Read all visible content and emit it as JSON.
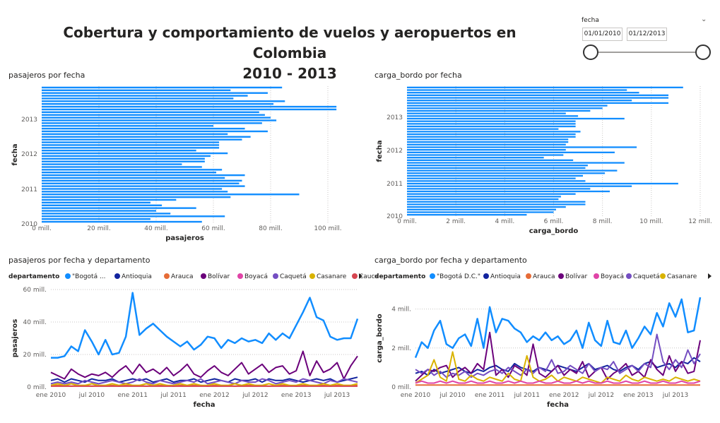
{
  "header": {
    "title_line1": "Cobertura y comportamiento de vuelos y aeropuertos en Colombia",
    "title_line2": "2010 - 2013"
  },
  "slicer": {
    "label": "fecha",
    "start": "01/01/2010",
    "end": "01/12/2013",
    "range_fraction": [
      0,
      1
    ]
  },
  "colors": {
    "bar": "#118DFF",
    "series": [
      "#118DFF",
      "#12239E",
      "#E66C37",
      "#6B007B",
      "#E044A7",
      "#744EC2",
      "#D9B300",
      "#D64550",
      "#197278",
      "#1AAB40"
    ]
  },
  "chart_data": [
    {
      "type": "bar",
      "orientation": "horizontal",
      "title": "pasajeros por fecha",
      "xlabel": "pasajeros",
      "ylabel": "fecha",
      "xlim": [
        0,
        100000000
      ],
      "x_ticks": [
        "0 mill.",
        "20 mill.",
        "40 mill.",
        "60 mill.",
        "80 mill.",
        "100 mill."
      ],
      "y_ticks": [
        "2013",
        "2012",
        "2011",
        "2010"
      ],
      "categories_order": "2013-12 top to 2010-01 bottom",
      "values_mill": [
        84,
        66,
        79,
        72,
        67,
        85,
        81,
        103,
        103,
        76,
        78,
        80,
        82,
        77,
        60,
        71,
        79,
        65,
        73,
        70,
        62,
        62,
        62,
        54,
        65,
        59,
        57,
        57,
        49,
        56,
        63,
        61,
        71,
        64,
        70,
        69,
        71,
        63,
        65,
        90,
        66,
        47,
        38,
        42,
        54,
        40,
        45,
        64,
        38,
        56
      ]
    },
    {
      "type": "bar",
      "orientation": "horizontal",
      "title": "carga_bordo por fecha",
      "xlabel": "carga_bordo",
      "ylabel": "fecha",
      "xlim": [
        0,
        12000000
      ],
      "x_ticks": [
        "0 mill.",
        "2 mill.",
        "4 mill.",
        "6 mill.",
        "8 mill.",
        "10 mill.",
        "12 mill."
      ],
      "y_ticks": [
        "2013",
        "2012",
        "2011",
        "2010"
      ],
      "categories_order": "2013-12 top to 2010-01 bottom",
      "values_mill": [
        11.3,
        9.0,
        9.5,
        10.7,
        10.7,
        9.2,
        10.7,
        8.2,
        8.0,
        7.5,
        6.5,
        7.0,
        8.9,
        6.9,
        6.9,
        6.9,
        6.2,
        7.1,
        6.9,
        6.9,
        6.6,
        6.6,
        6.5,
        9.4,
        6.5,
        8.5,
        6.4,
        5.6,
        6.8,
        8.9,
        7.4,
        7.3,
        8.6,
        8.1,
        7.2,
        6.9,
        7.3,
        11.1,
        9.2,
        7.5,
        8.3,
        6.9,
        6.3,
        6.2,
        7.3,
        7.3,
        6.5,
        6.1,
        6.0,
        4.9
      ]
    },
    {
      "type": "line",
      "title": "pasajeros por fecha y departamento",
      "xlabel": "fecha",
      "ylabel": "pasajeros",
      "ylim": [
        0,
        60000000
      ],
      "y_ticks": [
        "0 mill.",
        "20 mill.",
        "40 mill.",
        "60 mill."
      ],
      "x_ticks": [
        "ene 2010",
        "jul 2010",
        "ene 2011",
        "jul 2011",
        "ene 2012",
        "jul 2012",
        "ene 2013",
        "jul 2013"
      ],
      "legend_title": "departamento",
      "legend": [
        "\"Bogotá ...",
        "Antioquia",
        "Arauca",
        "Bolívar",
        "Boyacá",
        "Caquetá",
        "Casanare",
        "Cauca"
      ],
      "series": [
        {
          "name": "\"Bogotá ...",
          "values_mill": [
            18,
            18,
            19,
            25,
            22,
            35,
            28,
            20,
            29,
            20,
            21,
            31,
            58,
            32,
            36,
            39,
            35,
            31,
            28,
            25,
            28,
            23,
            26,
            31,
            30,
            24,
            29,
            27,
            30,
            28,
            29,
            27,
            33,
            29,
            33,
            30,
            38,
            46,
            55,
            43,
            41,
            31,
            29,
            30,
            30,
            42
          ]
        },
        {
          "name": "Antioquia",
          "values_mill": [
            4,
            5,
            3,
            5,
            4,
            3,
            5,
            4,
            4,
            5,
            3,
            4,
            5,
            4,
            5,
            3,
            4,
            5,
            3,
            4,
            4,
            5,
            3,
            4,
            5,
            4,
            3,
            5,
            4,
            4,
            5,
            3,
            5,
            4,
            4,
            5,
            4,
            3,
            4,
            5,
            4,
            5,
            3,
            4,
            5,
            6
          ]
        },
        {
          "name": "Bolívar",
          "values_mill": [
            9,
            7,
            5,
            11,
            8,
            6,
            8,
            7,
            9,
            6,
            10,
            13,
            8,
            14,
            9,
            11,
            8,
            12,
            7,
            10,
            14,
            8,
            6,
            10,
            13,
            9,
            7,
            11,
            15,
            8,
            11,
            14,
            9,
            12,
            13,
            8,
            10,
            22,
            7,
            16,
            9,
            11,
            15,
            5,
            13,
            19
          ]
        },
        {
          "name": "Caquetá",
          "values_mill": [
            2,
            3,
            2,
            3,
            2,
            4,
            3,
            2,
            3,
            4,
            3,
            2,
            3,
            5,
            3,
            2,
            4,
            3,
            2,
            3,
            4,
            3,
            5,
            2,
            3,
            4,
            3,
            2,
            4,
            3,
            3,
            5,
            4,
            2,
            3,
            4,
            3,
            5,
            4,
            3,
            2,
            4,
            3,
            5,
            4,
            3
          ]
        },
        {
          "name": "Arauca",
          "values_mill": [
            1,
            1,
            1,
            0.5,
            1,
            1,
            0.5,
            1,
            1,
            1,
            0.5,
            1,
            1,
            1,
            0.5,
            1,
            1,
            1,
            0.5,
            1,
            1,
            1,
            1,
            0.5,
            1,
            1,
            1,
            0.5,
            1,
            1,
            1,
            1,
            0.5,
            1,
            1,
            1,
            0.5,
            1,
            1,
            1,
            1,
            0.5,
            1,
            1,
            1,
            1
          ]
        },
        {
          "name": "Casanare",
          "values_mill": [
            1,
            2,
            1,
            2,
            1,
            1,
            2,
            1,
            1,
            2,
            1,
            2,
            1,
            1,
            2,
            1,
            2,
            1,
            1,
            2,
            1,
            2,
            1,
            1,
            2,
            1,
            1,
            2,
            1,
            2,
            1,
            1,
            2,
            1,
            2,
            1,
            1,
            2,
            1,
            1,
            2,
            1,
            2,
            1,
            1,
            2
          ]
        },
        {
          "name": "Cauca",
          "values_mill": [
            0.5,
            0.5,
            0.5,
            0.5,
            0.5,
            0.5,
            0.5,
            0.5,
            0.5,
            0.5,
            0.5,
            0.5,
            0.5,
            0.5,
            0.5,
            0.5,
            0.5,
            0.5,
            0.5,
            0.5,
            0.5,
            0.5,
            0.5,
            0.5,
            0.5,
            0.5,
            0.5,
            0.5,
            0.5,
            0.5,
            0.5,
            0.5,
            0.5,
            0.5,
            0.5,
            0.5,
            0.5,
            0.5,
            0.5,
            0.5,
            0.5,
            0.5,
            0.5,
            0.5,
            0.5,
            0.5
          ]
        }
      ]
    },
    {
      "type": "line",
      "title": "carga_bordo por fecha y departamento",
      "xlabel": "fecha",
      "ylabel": "carga_bordo",
      "ylim": [
        0,
        5000000
      ],
      "y_ticks": [
        "0 mill.",
        "2 mill.",
        "4 mill."
      ],
      "x_ticks": [
        "ene 2010",
        "jul 2010",
        "ene 2011",
        "jul 2011",
        "ene 2012",
        "jul 2012",
        "ene 2013",
        "jul 2013"
      ],
      "legend_title": "departamento",
      "legend": [
        "\"Bogotá D.C.\"",
        "Antioquia",
        "Arauca",
        "Bolívar",
        "Boyacá",
        "Caquetá",
        "Casanare"
      ],
      "series": [
        {
          "name": "\"Bogotá D.C.\"",
          "values_mill": [
            1.5,
            2.3,
            2.0,
            2.9,
            3.4,
            2.2,
            2.0,
            2.5,
            2.7,
            2.1,
            3.5,
            2.0,
            4.1,
            2.8,
            3.5,
            3.4,
            3.0,
            2.8,
            2.3,
            2.6,
            2.4,
            2.8,
            2.4,
            2.6,
            2.2,
            2.4,
            2.9,
            2.0,
            3.3,
            2.4,
            2.1,
            3.4,
            2.3,
            2.2,
            2.9,
            2.0,
            2.5,
            3.1,
            2.7,
            3.8,
            3.1,
            4.3,
            3.6,
            4.5,
            2.8,
            2.9,
            4.6
          ]
        },
        {
          "name": "Antioquia",
          "values_mill": [
            0.7,
            0.8,
            0.6,
            0.9,
            0.7,
            0.8,
            0.9,
            1.0,
            0.8,
            0.7,
            0.9,
            0.8,
            1.0,
            1.1,
            0.9,
            0.8,
            1.2,
            1.0,
            0.9,
            0.8,
            1.0,
            0.9,
            0.8,
            1.1,
            1.0,
            0.9,
            0.8,
            1.0,
            1.2,
            0.9,
            1.0,
            1.1,
            0.9,
            0.8,
            1.0,
            1.1,
            0.9,
            1.2,
            1.3,
            1.0,
            1.1,
            1.2,
            1.0,
            1.3,
            1.2,
            1.5,
            1.3
          ]
        },
        {
          "name": "Bolívar",
          "values_mill": [
            0.3,
            0.6,
            0.9,
            0.8,
            1.0,
            1.1,
            0.5,
            0.8,
            1.0,
            0.7,
            1.2,
            0.9,
            2.8,
            0.6,
            0.9,
            0.5,
            1.1,
            0.9,
            0.6,
            2.2,
            0.7,
            0.5,
            0.8,
            1.1,
            0.6,
            0.9,
            0.7,
            1.3,
            0.5,
            0.8,
            1.0,
            0.4,
            0.7,
            0.9,
            1.2,
            0.6,
            0.8,
            0.5,
            1.4,
            0.9,
            0.6,
            1.6,
            0.8,
            1.3,
            0.7,
            0.8,
            2.4
          ]
        },
        {
          "name": "Caquetá",
          "values_mill": [
            0.9,
            0.7,
            0.9,
            0.6,
            0.8,
            0.5,
            0.7,
            0.6,
            0.8,
            0.5,
            0.7,
            0.6,
            0.8,
            0.9,
            0.7,
            1.0,
            0.8,
            0.6,
            0.9,
            0.7,
            1.0,
            0.8,
            1.4,
            0.7,
            0.8,
            1.1,
            0.9,
            0.7,
            1.2,
            0.8,
            1.0,
            0.9,
            1.3,
            0.7,
            0.9,
            1.1,
            0.8,
            1.2,
            1.0,
            2.7,
            1.3,
            0.9,
            1.4,
            1.0,
            1.9,
            1.2,
            1.7
          ]
        },
        {
          "name": "Casanare",
          "values_mill": [
            0.2,
            0.4,
            0.6,
            1.4,
            0.5,
            0.3,
            1.8,
            0.4,
            0.3,
            0.6,
            0.4,
            0.3,
            0.5,
            0.4,
            0.3,
            0.7,
            0.4,
            0.3,
            1.6,
            0.5,
            0.3,
            0.4,
            0.6,
            0.3,
            0.5,
            0.4,
            0.3,
            0.5,
            0.4,
            0.3,
            0.2,
            0.5,
            0.4,
            0.3,
            0.6,
            0.4,
            0.3,
            0.5,
            0.4,
            0.3,
            0.4,
            0.3,
            0.5,
            0.4,
            0.3,
            0.4,
            0.3
          ]
        },
        {
          "name": "Arauca",
          "values_mill": [
            0.1,
            0.1,
            0.1,
            0.1,
            0.1,
            0.1,
            0.1,
            0.1,
            0.1,
            0.1,
            0.1,
            0.1,
            0.1,
            0.1,
            0.1,
            0.1,
            0.1,
            0.1,
            0.1,
            0.1,
            0.1,
            0.1,
            0.1,
            0.1,
            0.1,
            0.1,
            0.1,
            0.1,
            0.1,
            0.1,
            0.1,
            0.1,
            0.1,
            0.1,
            0.1,
            0.1,
            0.1,
            0.1,
            0.1,
            0.1,
            0.1,
            0.1,
            0.1,
            0.1,
            0.1,
            0.1,
            0.1
          ]
        },
        {
          "name": "Boyacá",
          "values_mill": [
            0.2,
            0.3,
            0.2,
            0.2,
            0.3,
            0.2,
            0.3,
            0.2,
            0.2,
            0.3,
            0.2,
            0.2,
            0.3,
            0.2,
            0.2,
            0.3,
            0.2,
            0.3,
            0.2,
            0.2,
            0.3,
            0.2,
            0.2,
            0.3,
            0.2,
            0.2,
            0.3,
            0.2,
            0.3,
            0.2,
            0.2,
            0.3,
            0.2,
            0.2,
            0.3,
            0.2,
            0.2,
            0.3,
            0.2,
            0.2,
            0.3,
            0.2,
            0.2,
            0.3,
            0.2,
            0.2,
            0.3
          ]
        }
      ]
    }
  ]
}
